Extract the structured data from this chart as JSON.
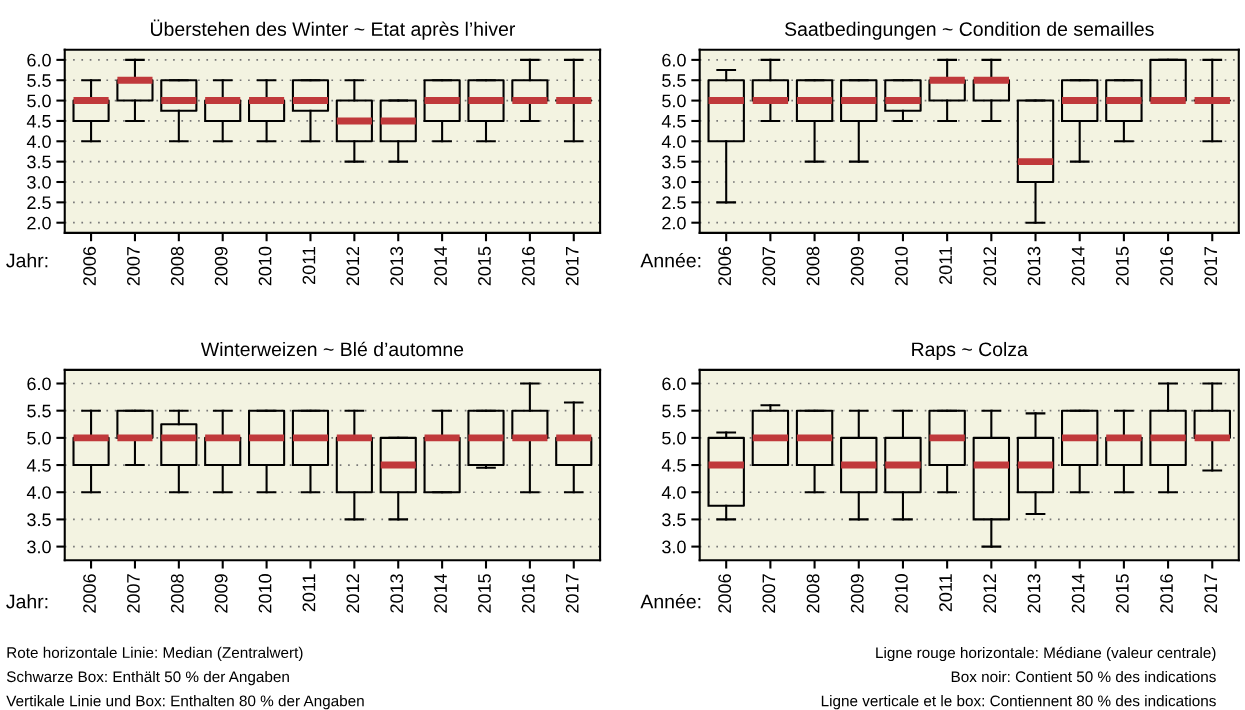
{
  "chart_data": [
    {
      "type": "box",
      "title": "Überstehen des Winter ~ Etat après l’hiver",
      "xlabel": "Jahr:",
      "categories": [
        "2006",
        "2007",
        "2008",
        "2009",
        "2010",
        "2011",
        "2012",
        "2013",
        "2014",
        "2015",
        "2016",
        "2017"
      ],
      "ylim": [
        1.75,
        6.25
      ],
      "yticks": [
        {
          "value": 2,
          "label": "2.0"
        },
        2.5,
        {
          "value": 3,
          "label": "3.0"
        },
        3.5,
        {
          "value": 4,
          "label": "4.0"
        },
        4.5,
        {
          "value": 5,
          "label": "5.0"
        },
        5.5,
        {
          "value": 6,
          "label": "6.0"
        }
      ],
      "grid": "y",
      "series": [
        {
          "color": "#000000",
          "boxes": [
            {
              "low": 4,
              "q1": 4.5,
              "median": 5,
              "q3": 5,
              "high": 5.5
            },
            {
              "low": 4.5,
              "q1": 5,
              "median": 5.5,
              "q3": 5.5,
              "high": 6
            },
            {
              "low": 4,
              "q1": 4.75,
              "median": 5,
              "q3": 5.5,
              "high": 5.5
            },
            {
              "low": 4,
              "q1": 4.5,
              "median": 5,
              "q3": 5,
              "high": 5.5
            },
            {
              "low": 4,
              "q1": 4.5,
              "median": 5,
              "q3": 5,
              "high": 5.5
            },
            {
              "low": 4,
              "q1": 4.75,
              "median": 5,
              "q3": 5.5,
              "high": 5.5
            },
            {
              "low": 3.5,
              "q1": 4,
              "median": 4.5,
              "q3": 5,
              "high": 5.5
            },
            {
              "low": 3.5,
              "q1": 4,
              "median": 4.5,
              "q3": 5,
              "high": 5
            },
            {
              "low": 4,
              "q1": 4.5,
              "median": 5,
              "q3": 5.5,
              "high": 5.5
            },
            {
              "low": 4,
              "q1": 4.5,
              "median": 5,
              "q3": 5.5,
              "high": 5.5
            },
            {
              "low": 4.5,
              "q1": 5,
              "median": 5,
              "q3": 5.5,
              "high": 6
            },
            {
              "low": 4,
              "q1": 5,
              "median": 5,
              "q3": 5,
              "high": 6
            }
          ]
        }
      ]
    },
    {
      "type": "box",
      "title": "Saatbedingungen ~ Condition de semailles",
      "xlabel": "Année:",
      "categories": [
        "2006",
        "2007",
        "2008",
        "2009",
        "2010",
        "2011",
        "2012",
        "2013",
        "2014",
        "2015",
        "2016",
        "2017"
      ],
      "ylim": [
        1.75,
        6.25
      ],
      "yticks": [
        {
          "value": 2,
          "label": "2.0"
        },
        2.5,
        {
          "value": 3,
          "label": "3.0"
        },
        3.5,
        {
          "value": 4,
          "label": "4.0"
        },
        4.5,
        {
          "value": 5,
          "label": "5.0"
        },
        5.5,
        {
          "value": 6,
          "label": "6.0"
        }
      ],
      "grid": "y",
      "series": [
        {
          "color": "#000000",
          "boxes": [
            {
              "low": 2.5,
              "q1": 4,
              "median": 5,
              "q3": 5.5,
              "high": 5.75
            },
            {
              "low": 4.5,
              "q1": 5,
              "median": 5,
              "q3": 5.5,
              "high": 6
            },
            {
              "low": 3.5,
              "q1": 4.5,
              "median": 5,
              "q3": 5.5,
              "high": 5.5
            },
            {
              "low": 3.5,
              "q1": 4.5,
              "median": 5,
              "q3": 5.5,
              "high": 5.5
            },
            {
              "low": 4.5,
              "q1": 4.75,
              "median": 5,
              "q3": 5.5,
              "high": 5.5
            },
            {
              "low": 4.5,
              "q1": 5,
              "median": 5.5,
              "q3": 5.5,
              "high": 6
            },
            {
              "low": 4.5,
              "q1": 5,
              "median": 5.5,
              "q3": 5.5,
              "high": 6
            },
            {
              "low": 2,
              "q1": 3,
              "median": 3.5,
              "q3": 5,
              "high": 5
            },
            {
              "low": 3.5,
              "q1": 4.5,
              "median": 5,
              "q3": 5.5,
              "high": 5.5
            },
            {
              "low": 4,
              "q1": 4.5,
              "median": 5,
              "q3": 5.5,
              "high": 5.5
            },
            {
              "low": 5,
              "q1": 5,
              "median": 5,
              "q3": 6,
              "high": 6
            },
            {
              "low": 4,
              "q1": 5,
              "median": 5,
              "q3": 5,
              "high": 6
            }
          ]
        }
      ]
    },
    {
      "type": "box",
      "title": "Winterweizen ~ Blé d’automne",
      "xlabel": "Jahr:",
      "categories": [
        "2006",
        "2007",
        "2008",
        "2009",
        "2010",
        "2011",
        "2012",
        "2013",
        "2014",
        "2015",
        "2016",
        "2017"
      ],
      "ylim": [
        2.75,
        6.25
      ],
      "yticks": [
        {
          "value": 3,
          "label": "3.0"
        },
        3.5,
        {
          "value": 4,
          "label": "4.0"
        },
        4.5,
        {
          "value": 5,
          "label": "5.0"
        },
        5.5,
        {
          "value": 6,
          "label": "6.0"
        }
      ],
      "grid": "y",
      "annotations": [
        "Rote horizontale Linie: Median (Zentralwert)",
        "Schwarze Box: Enthält 50 % der Angaben",
        "Vertikale Linie und Box: Enthalten 80 % der Angaben"
      ],
      "series": [
        {
          "color": "#000000",
          "boxes": [
            {
              "low": 4,
              "q1": 4.5,
              "median": 5,
              "q3": 5,
              "high": 5.5
            },
            {
              "low": 4.5,
              "q1": 5,
              "median": 5,
              "q3": 5.5,
              "high": 5.5
            },
            {
              "low": 4,
              "q1": 4.5,
              "median": 5,
              "q3": 5.25,
              "high": 5.5
            },
            {
              "low": 4,
              "q1": 4.5,
              "median": 5,
              "q3": 5,
              "high": 5.5
            },
            {
              "low": 4,
              "q1": 4.5,
              "median": 5,
              "q3": 5.5,
              "high": 5.5
            },
            {
              "low": 4,
              "q1": 4.5,
              "median": 5,
              "q3": 5.5,
              "high": 5.5
            },
            {
              "low": 3.5,
              "q1": 4,
              "median": 5,
              "q3": 5,
              "high": 5.5
            },
            {
              "low": 3.5,
              "q1": 4,
              "median": 4.5,
              "q3": 5,
              "high": 5
            },
            {
              "low": 4,
              "q1": 4,
              "median": 5,
              "q3": 5,
              "high": 5.5
            },
            {
              "low": 4.45,
              "q1": 4.5,
              "median": 5,
              "q3": 5.5,
              "high": 5.5
            },
            {
              "low": 4,
              "q1": 5,
              "median": 5,
              "q3": 5.5,
              "high": 6
            },
            {
              "low": 4,
              "q1": 4.5,
              "median": 5,
              "q3": 5,
              "high": 5.65
            }
          ]
        }
      ]
    },
    {
      "type": "box",
      "title": "Raps ~ Colza",
      "xlabel": "Année:",
      "categories": [
        "2006",
        "2007",
        "2008",
        "2009",
        "2010",
        "2011",
        "2012",
        "2013",
        "2014",
        "2015",
        "2016",
        "2017"
      ],
      "ylim": [
        2.75,
        6.25
      ],
      "yticks": [
        {
          "value": 3,
          "label": "3.0"
        },
        3.5,
        {
          "value": 4,
          "label": "4.0"
        },
        4.5,
        {
          "value": 5,
          "label": "5.0"
        },
        5.5,
        {
          "value": 6,
          "label": "6.0"
        }
      ],
      "grid": "y",
      "annotations": [
        "Ligne rouge horizontale: Médiane (valeur centrale)",
        "Box noir: Contient 50 % des indications",
        "Ligne verticale et le box: Contiennent 80 % des indications"
      ],
      "series": [
        {
          "color": "#000000",
          "boxes": [
            {
              "low": 3.5,
              "q1": 3.75,
              "median": 4.5,
              "q3": 5,
              "high": 5.1
            },
            {
              "low": 4.5,
              "q1": 4.5,
              "median": 5,
              "q3": 5.5,
              "high": 5.6
            },
            {
              "low": 4,
              "q1": 4.5,
              "median": 5,
              "q3": 5.5,
              "high": 5.5
            },
            {
              "low": 3.5,
              "q1": 4,
              "median": 4.5,
              "q3": 5,
              "high": 5.5
            },
            {
              "low": 3.5,
              "q1": 4,
              "median": 4.5,
              "q3": 5,
              "high": 5.5
            },
            {
              "low": 4,
              "q1": 4.5,
              "median": 5,
              "q3": 5.5,
              "high": 5.5
            },
            {
              "low": 3,
              "q1": 3.5,
              "median": 4.5,
              "q3": 5,
              "high": 5.5
            },
            {
              "low": 3.6,
              "q1": 4,
              "median": 4.5,
              "q3": 5,
              "high": 5.45
            },
            {
              "low": 4,
              "q1": 4.5,
              "median": 5,
              "q3": 5.5,
              "high": 5.5
            },
            {
              "low": 4,
              "q1": 4.5,
              "median": 5,
              "q3": 5,
              "high": 5.5
            },
            {
              "low": 4,
              "q1": 4.5,
              "median": 5,
              "q3": 5.5,
              "high": 6
            },
            {
              "low": 4.4,
              "q1": 5,
              "median": 5,
              "q3": 5.5,
              "high": 6
            }
          ]
        }
      ]
    }
  ]
}
